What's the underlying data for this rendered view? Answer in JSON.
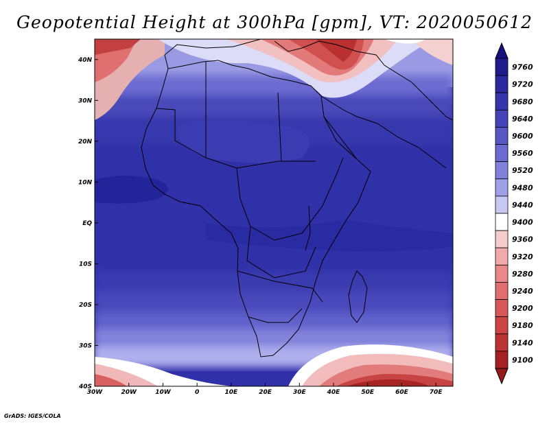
{
  "title": "Geopotential Height at 300hPa [gpm], VT: 2020050612",
  "credit": "GrADS: IGES/COLA",
  "map": {
    "lon_range": [
      -30,
      75
    ],
    "lat_range": [
      -40,
      45
    ],
    "lon_ticks": [
      {
        "lon": -30,
        "label": "30W"
      },
      {
        "lon": -20,
        "label": "20W"
      },
      {
        "lon": -10,
        "label": "10W"
      },
      {
        "lon": 0,
        "label": "0"
      },
      {
        "lon": 10,
        "label": "10E"
      },
      {
        "lon": 20,
        "label": "20E"
      },
      {
        "lon": 30,
        "label": "30E"
      },
      {
        "lon": 40,
        "label": "40E"
      },
      {
        "lon": 50,
        "label": "50E"
      },
      {
        "lon": 60,
        "label": "60E"
      },
      {
        "lon": 70,
        "label": "70E"
      }
    ],
    "lat_ticks": [
      {
        "lat": 40,
        "label": "40N"
      },
      {
        "lat": 30,
        "label": "30N"
      },
      {
        "lat": 20,
        "label": "20N"
      },
      {
        "lat": 10,
        "label": "10N"
      },
      {
        "lat": 0,
        "label": "EQ"
      },
      {
        "lat": -10,
        "label": "10S"
      },
      {
        "lat": -20,
        "label": "20S"
      },
      {
        "lat": -30,
        "label": "30S"
      },
      {
        "lat": -40,
        "label": "40S"
      }
    ]
  },
  "colorbar": {
    "levels": [
      {
        "value": "9760",
        "color": "#1f1b8c"
      },
      {
        "value": "9720",
        "color": "#2a2a9e"
      },
      {
        "value": "9680",
        "color": "#3535ad"
      },
      {
        "value": "9640",
        "color": "#4444b8"
      },
      {
        "value": "9600",
        "color": "#5656c4"
      },
      {
        "value": "9560",
        "color": "#6a6ad0"
      },
      {
        "value": "9520",
        "color": "#8282dc"
      },
      {
        "value": "9480",
        "color": "#a0a0e8"
      },
      {
        "value": "9440",
        "color": "#c8c8f4"
      },
      {
        "value": "9400",
        "color": "#ffffff"
      },
      {
        "value": "9360",
        "color": "#f6cccc"
      },
      {
        "value": "9320",
        "color": "#f0aaaa"
      },
      {
        "value": "9280",
        "color": "#e88888"
      },
      {
        "value": "9240",
        "color": "#e06e6e"
      },
      {
        "value": "9200",
        "color": "#d85858"
      },
      {
        "value": "9180",
        "color": "#cc4444"
      },
      {
        "value": "9140",
        "color": "#bb3333"
      },
      {
        "value": "9100",
        "color": "#a52222"
      }
    ],
    "top_cap_color": "#161080",
    "bottom_cap_color": "#951a1a"
  }
}
